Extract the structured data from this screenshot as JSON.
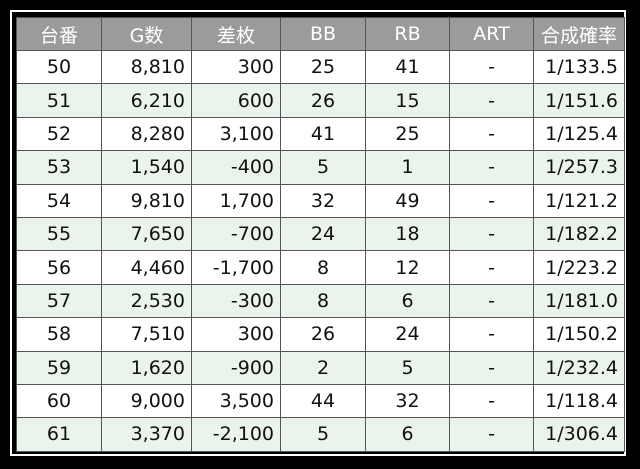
{
  "headers": [
    "台番",
    "G数",
    "差枚",
    "BB",
    "RB",
    "ART",
    "合成確率"
  ],
  "rows": [
    [
      "50",
      "8,810",
      "300",
      "25",
      "41",
      "-",
      "1/133.5"
    ],
    [
      "51",
      "6,210",
      "600",
      "26",
      "15",
      "-",
      "1/151.6"
    ],
    [
      "52",
      "8,280",
      "3,100",
      "41",
      "25",
      "-",
      "1/125.4"
    ],
    [
      "53",
      "1,540",
      "-400",
      "5",
      "1",
      "-",
      "1/257.3"
    ],
    [
      "54",
      "9,810",
      "1,700",
      "32",
      "49",
      "-",
      "1/121.2"
    ],
    [
      "55",
      "7,650",
      "-700",
      "24",
      "18",
      "-",
      "1/182.2"
    ],
    [
      "56",
      "4,460",
      "-1,700",
      "8",
      "12",
      "-",
      "1/223.2"
    ],
    [
      "57",
      "2,530",
      "-300",
      "8",
      "6",
      "-",
      "1/181.0"
    ],
    [
      "58",
      "7,510",
      "300",
      "26",
      "24",
      "-",
      "1/150.2"
    ],
    [
      "59",
      "1,620",
      "-900",
      "2",
      "5",
      "-",
      "1/232.4"
    ],
    [
      "60",
      "9,000",
      "3,500",
      "44",
      "32",
      "-",
      "1/118.4"
    ],
    [
      "61",
      "3,370",
      "-2,100",
      "5",
      "6",
      "-",
      "1/306.4"
    ]
  ],
  "colors": {
    "header_bg": "#9b9b9b",
    "alt_row_bg": "#eaf3ec",
    "background": "#000000"
  }
}
